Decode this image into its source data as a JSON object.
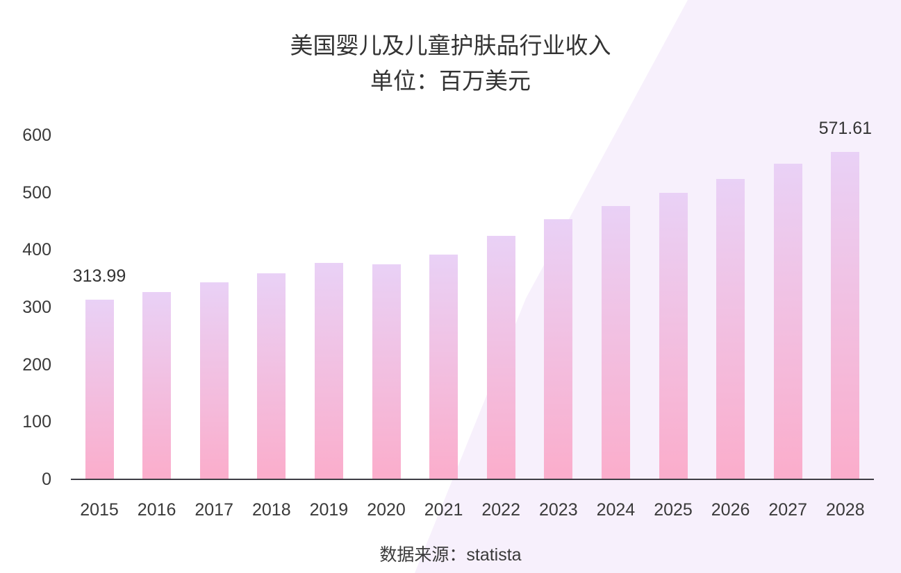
{
  "chart_data": {
    "type": "bar",
    "title": "美国婴儿及儿童护肤品行业收入",
    "subtitle": "单位：百万美元",
    "source": "数据来源：statista",
    "categories": [
      "2015",
      "2016",
      "2017",
      "2018",
      "2019",
      "2020",
      "2021",
      "2022",
      "2023",
      "2024",
      "2025",
      "2026",
      "2027",
      "2028"
    ],
    "values": [
      313.99,
      327,
      344,
      359,
      377,
      375,
      392,
      425,
      454,
      477,
      500,
      524,
      551,
      571.61
    ],
    "labeled_points": [
      {
        "category": "2015",
        "label": "313.99"
      },
      {
        "category": "2028",
        "label": "571.61"
      }
    ],
    "xlabel": "",
    "ylabel": "",
    "ylim": [
      0,
      600
    ],
    "yticks": [
      0,
      100,
      200,
      300,
      400,
      500,
      600
    ],
    "grid": false,
    "legend": "none",
    "colors": {
      "bar_gradient_top": "#e9d1f6",
      "bar_gradient_bottom": "#fbadcb",
      "background_accent": "#f7f0fc",
      "axis_line": "#3d3d44",
      "text": "#3a3a3a"
    }
  }
}
